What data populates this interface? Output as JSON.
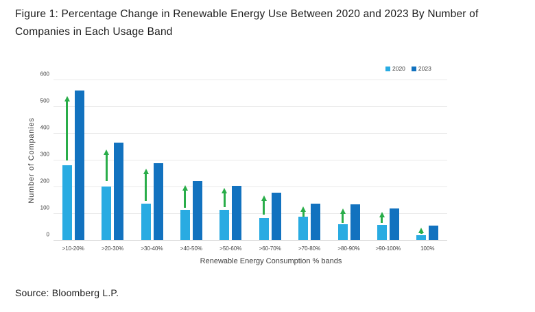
{
  "figure": {
    "title": "Figure 1: Percentage Change in Renewable Energy Use Between 2020 and 2023 By Number of Companies in Each Usage Band",
    "source": "Source: Bloomberg L.P."
  },
  "colors": {
    "series_2020": "#29ABE2",
    "series_2023": "#1272BF",
    "arrow_green": "#29AD49",
    "gridline": "#E9E9E9",
    "axis_line": "#D9D9D9",
    "tick_text": "#404040",
    "axis_text": "#3D3D3D",
    "title_text": "#1C1C1C"
  },
  "chart_data": {
    "type": "bar",
    "title": "",
    "categories": [
      ">10-20%",
      ">20-30%",
      ">30-40%",
      ">40-50%",
      ">50-60%",
      ">60-70%",
      ">70-80%",
      ">80-90%",
      ">90-100%",
      "100%"
    ],
    "series": [
      {
        "name": "2020",
        "values": [
          280,
          200,
          135,
          113,
          113,
          82,
          87,
          58,
          56,
          17
        ]
      },
      {
        "name": "2023",
        "values": [
          558,
          363,
          288,
          220,
          202,
          178,
          137,
          134,
          117,
          54
        ]
      }
    ],
    "growth_arrows": [
      [
        300,
        540
      ],
      [
        222,
        340
      ],
      [
        150,
        269
      ],
      [
        122,
        208
      ],
      [
        125,
        197
      ],
      [
        97,
        168
      ],
      [
        91,
        129
      ],
      [
        67,
        120
      ],
      [
        66,
        108
      ],
      [
        25,
        50
      ]
    ],
    "xlabel": "Renewable Energy Consumption % bands",
    "ylabel": "Number of Companies",
    "ylim": [
      0,
      600
    ],
    "ytick_step": 100,
    "grid": true,
    "legend_position": "top-right"
  }
}
